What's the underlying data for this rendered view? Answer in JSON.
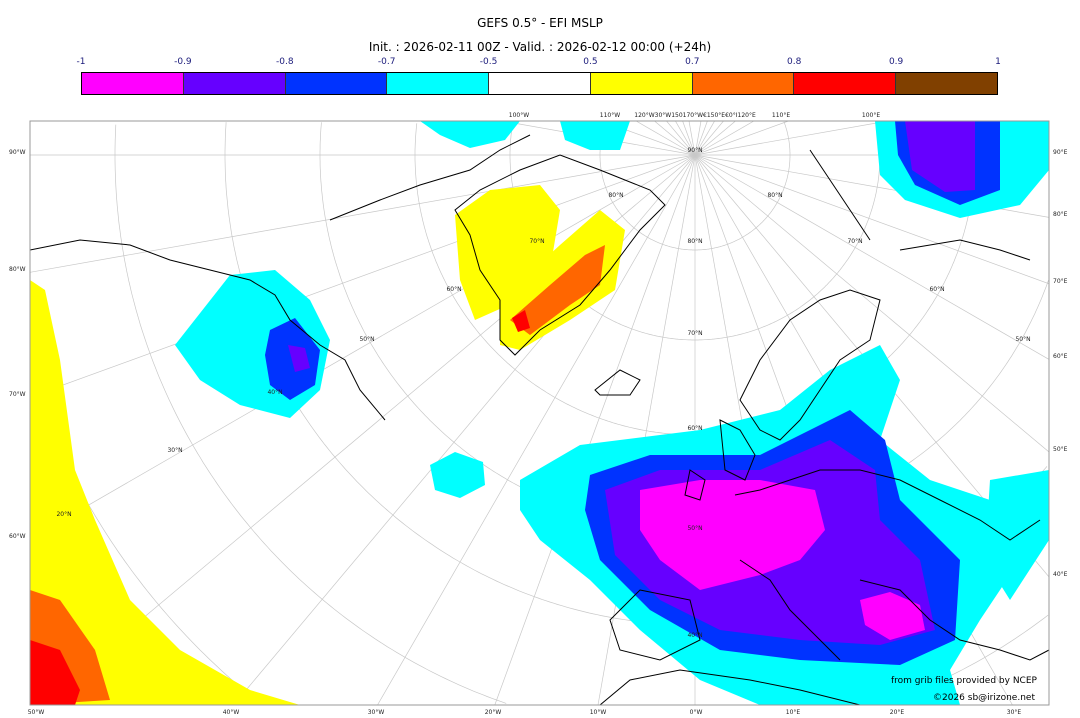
{
  "title": "GEFS 0.5° - EFI MSLP",
  "subtitle": "Init. : 2026-02-11 00Z - Valid. : 2026-02-12 00:00 (+24h)",
  "colorbar": {
    "ticks": [
      "-1",
      "-0.9",
      "-0.8",
      "-0.7",
      "-0.5",
      "0.5",
      "0.7",
      "0.8",
      "0.9",
      "1"
    ],
    "colors": [
      "#ff00ff",
      "#6600ff",
      "#0033ff",
      "#00ffff",
      "#ffffff",
      "#ffff00",
      "#ff6600",
      "#ff0000",
      "#804000"
    ]
  },
  "axes": {
    "left": [
      "90°W",
      "80°W",
      "70°W",
      "60°W"
    ],
    "right": [
      "90°E",
      "80°E",
      "70°E",
      "60°E",
      "50°E",
      "40°E"
    ],
    "bottom": [
      "50°W",
      "40°W",
      "30°W",
      "20°W",
      "10°W",
      "0°W",
      "10°E",
      "20°E",
      "30°E"
    ],
    "top": [
      "100°W",
      "110°W",
      "120°W30°W150170°W€150°E€0°I120°E",
      "110°E",
      "100°E"
    ]
  },
  "grid_labels": [
    "90°N",
    "80°N",
    "70°N",
    "60°N",
    "50°N",
    "40°N",
    "30°N",
    "20°N",
    "40°N",
    "50°N",
    "60°N",
    "70°N",
    "80°N",
    "80°N",
    "70°N",
    "60°N",
    "50°N"
  ],
  "credits": {
    "source": "from grib files provided by NCEP",
    "copyright": "©2026 sb@irizone.net"
  }
}
